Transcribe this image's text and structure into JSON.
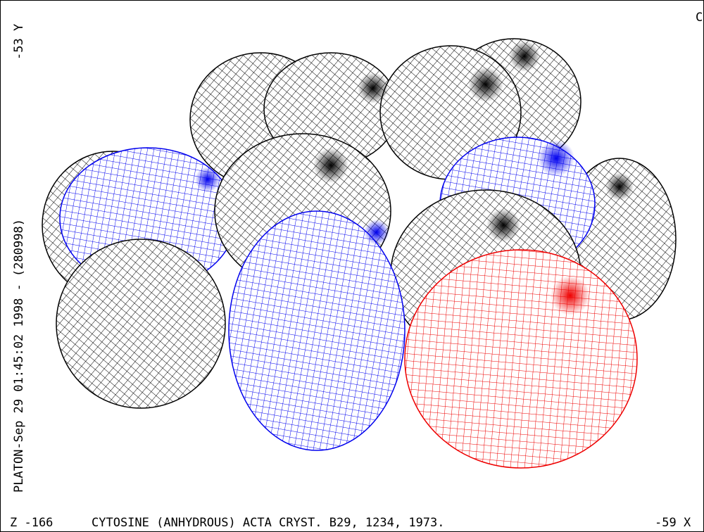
{
  "header": {
    "corner": "C"
  },
  "side": {
    "y_label": "-53 Y",
    "stamp": "PLATON-Sep 29 01:45:02 1998 - (280998)"
  },
  "footer": {
    "z": "Z -166",
    "title": "CYTOSINE (ANHYDROUS) ACTA CRYST. B29, 1234, 1973.",
    "x": "-59 X"
  }
}
